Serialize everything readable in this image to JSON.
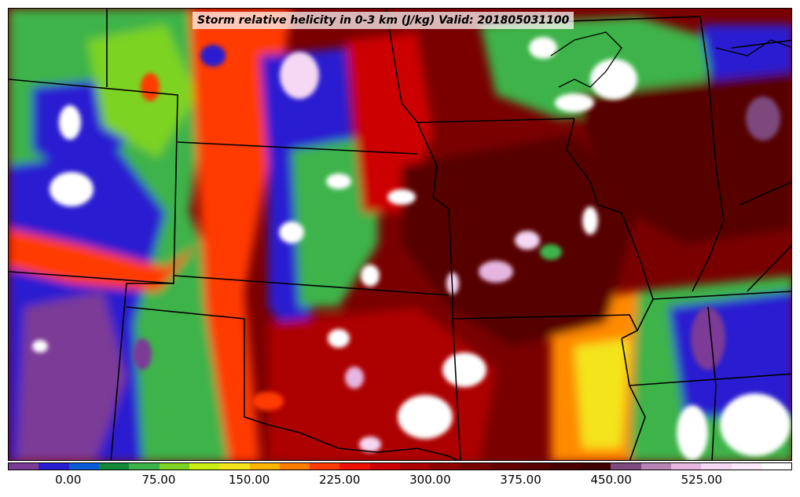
{
  "title": "Storm relative helicity in 0-3 km (J/kg) Valid: 201805031100",
  "colorbar": {
    "colors": [
      "#7b3a96",
      "#2a1fd0",
      "#0a5bd8",
      "#128a3a",
      "#3cb34a",
      "#7dd321",
      "#c9ef14",
      "#f3e41b",
      "#ffb400",
      "#ff7d00",
      "#ff3b00",
      "#f01000",
      "#cc0000",
      "#ad0000",
      "#8e0000",
      "#770000",
      "#650000",
      "#560000",
      "#4a0000",
      "#3e0000",
      "#7d4a7d",
      "#b783b3",
      "#e6b6e0",
      "#f5d8f3",
      "#fbeafa",
      "#ffffff"
    ],
    "tick_labels": [
      "0.00",
      "75.00",
      "150.00",
      "225.00",
      "300.00",
      "375.00",
      "450.00",
      "525.00"
    ]
  },
  "map": {
    "region": "Central United States",
    "field_colors": {
      "purple": "#7b3a96",
      "blue": "#2a1fd0",
      "green": "#3cb34a",
      "lime": "#b8e61a",
      "yellow": "#f3e41b",
      "orange": "#ff8a00",
      "red": "#ff2a00",
      "dark_red": "#8e0000",
      "maroon": "#560000",
      "pink": "#e6b6e0",
      "white": "#ffffff"
    }
  }
}
